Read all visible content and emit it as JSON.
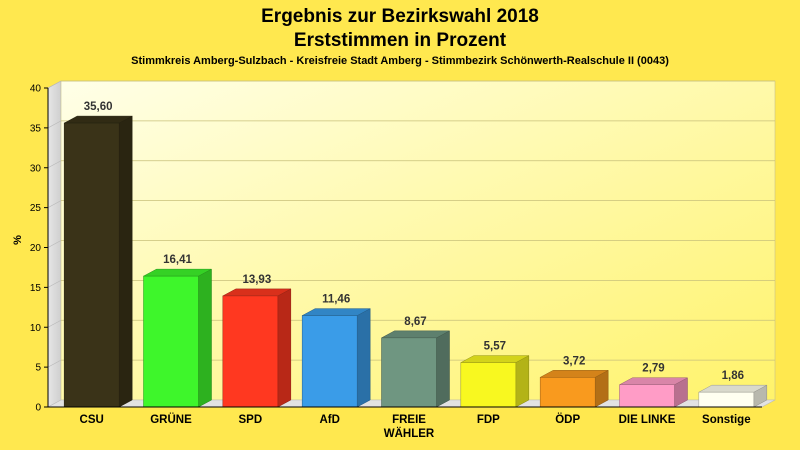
{
  "chart_data": {
    "type": "bar",
    "title": "Ergebnis zur Bezirkswahl 2018",
    "title2": "Erststimmen in Prozent",
    "subtitle": "Stimmkreis Amberg-Sulzbach - Kreisfreie Stadt Amberg - Stimmbezirk Schönwerth-Realschule II (0043)",
    "ylabel": "%",
    "xlabel": "",
    "ylim": [
      0,
      40
    ],
    "yticks": [
      "0",
      "5",
      "10",
      "15",
      "20",
      "25",
      "30",
      "35",
      "40"
    ],
    "categories": [
      "CSU",
      "GRÜNE",
      "SPD",
      "AfD",
      "FREIE WÄHLER",
      "FDP",
      "ÖDP",
      "DIE LINKE",
      "Sonstige"
    ],
    "category_lines": [
      [
        "CSU"
      ],
      [
        "GRÜNE"
      ],
      [
        "SPD"
      ],
      [
        "AfD"
      ],
      [
        "FREIE",
        "WÄHLER"
      ],
      [
        "FDP"
      ],
      [
        "ÖDP"
      ],
      [
        "DIE LINKE"
      ],
      [
        "Sonstige"
      ]
    ],
    "values": [
      35.6,
      16.41,
      13.93,
      11.46,
      8.67,
      5.57,
      3.72,
      2.79,
      1.86
    ],
    "value_labels": [
      "35,60",
      "16,41",
      "13,93",
      "11,46",
      "8,67",
      "5,57",
      "3,72",
      "2,79",
      "1,86"
    ],
    "colors": [
      "#3A3318",
      "#3EF62B",
      "#FF3820",
      "#3A9CE8",
      "#6F9681",
      "#F8F820",
      "#F99A1E",
      "#FF9CC6",
      "#FFFFF0"
    ],
    "grid": true,
    "legend": "none"
  }
}
